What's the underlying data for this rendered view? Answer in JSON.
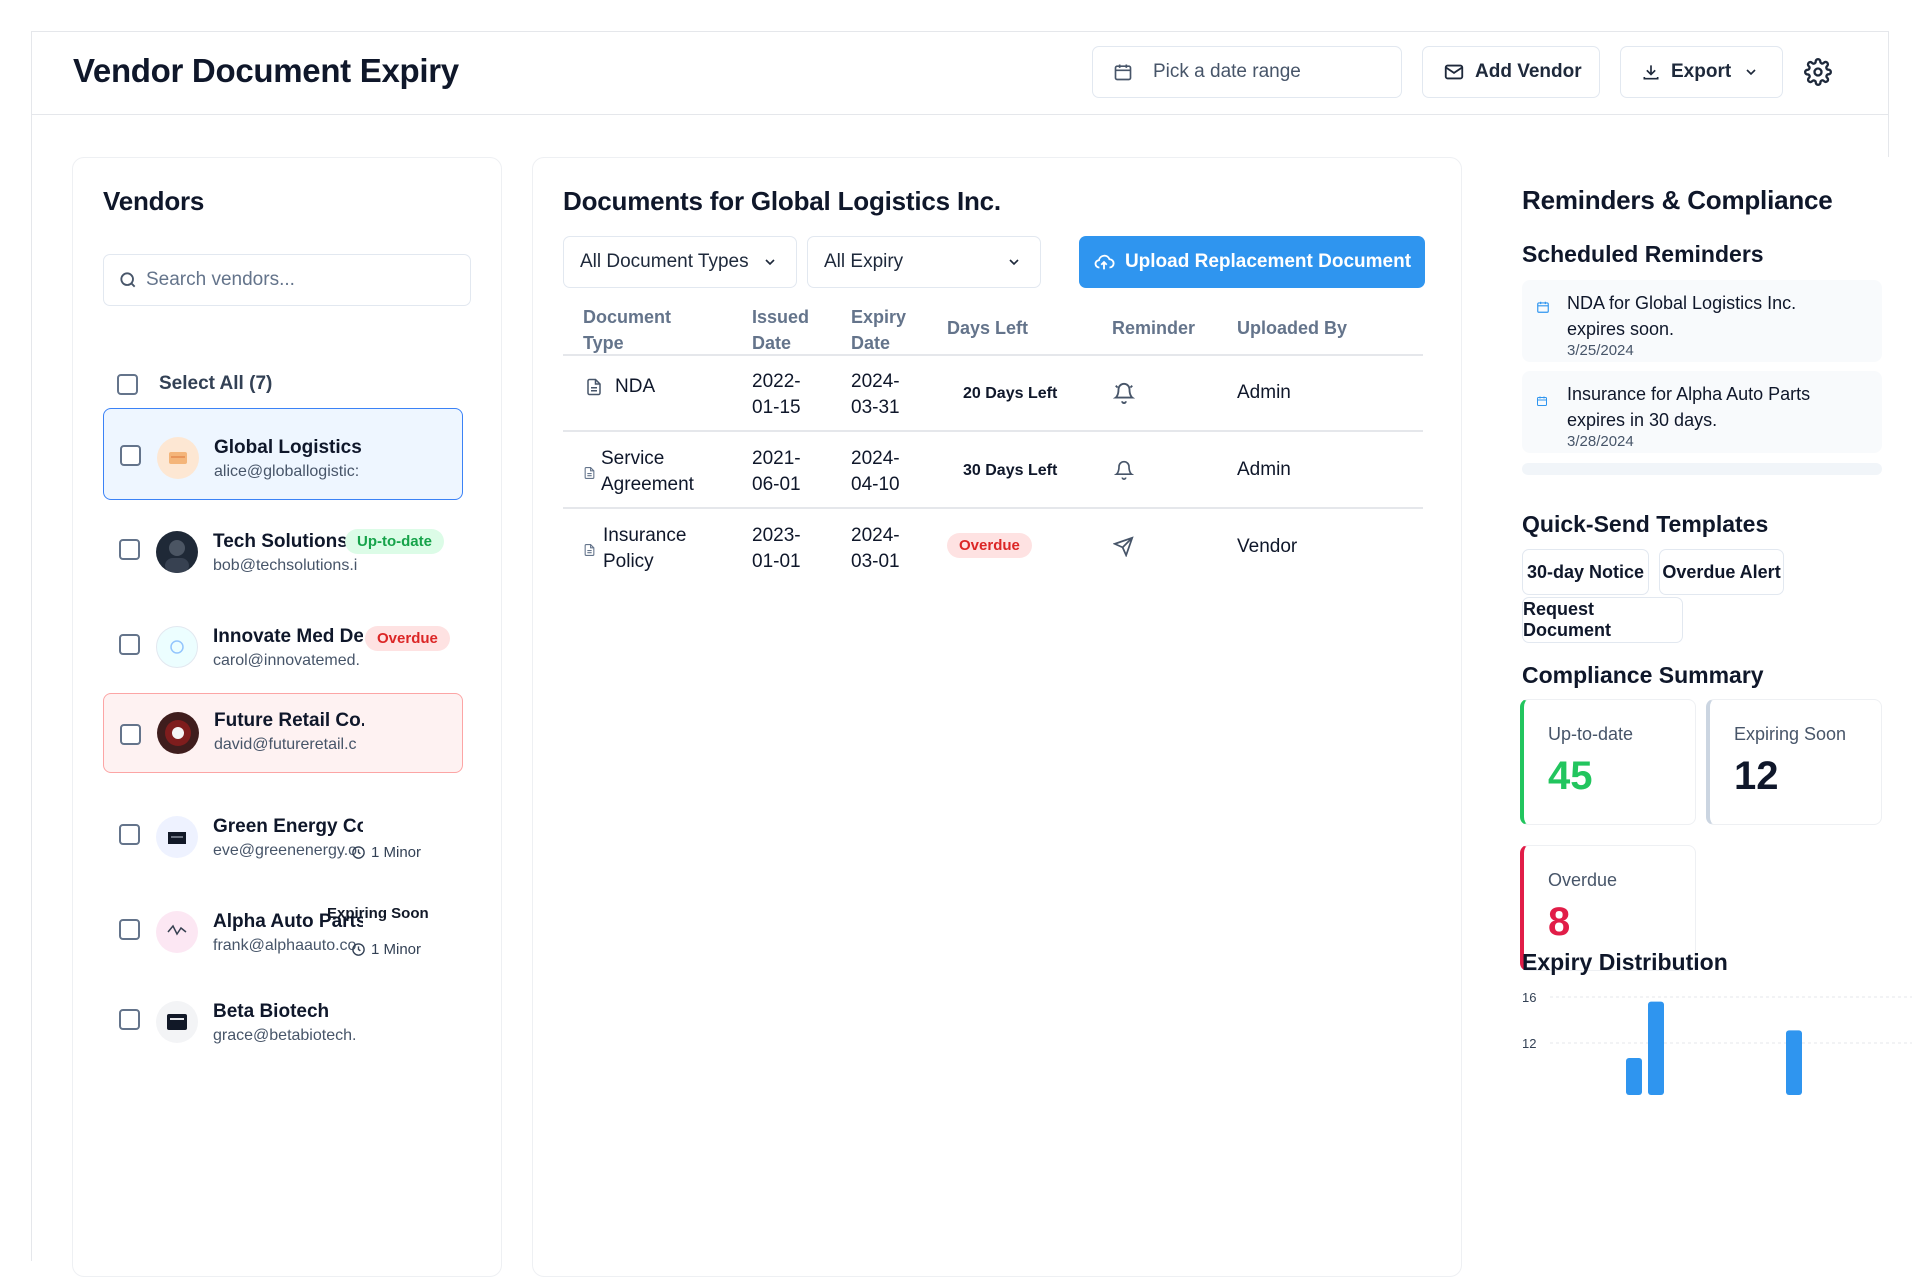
{
  "header": {
    "title": "Vendor Document Expiry",
    "date_placeholder": "Pick a date range",
    "add_vendor": "Add Vendor",
    "export": "Export"
  },
  "vendors_panel": {
    "title": "Vendors",
    "search_placeholder": "Search vendors...",
    "select_all": "Select All (7)",
    "items": [
      {
        "name": "Global Logistics I",
        "email": "alice@globallogistic:"
      },
      {
        "name": "Tech Solutions LL",
        "email": "bob@techsolutions.i",
        "badge": "Up-to-date"
      },
      {
        "name": "Innovate Med De’",
        "email": "carol@innovatemed.",
        "badge": "Overdue"
      },
      {
        "name": "Future Retail Co.",
        "email": "david@futureretail.c"
      },
      {
        "name": "Green Energy Coi",
        "email": "eve@greenenergy.o",
        "minor": "1 Minor"
      },
      {
        "name": "Alpha Auto Parts",
        "email": "frank@alphaauto.co",
        "badge": "Expiring Soon",
        "minor": "1 Minor"
      },
      {
        "name": "Beta Biotech",
        "email": "grace@betabiotech."
      }
    ]
  },
  "documents_panel": {
    "title": "Documents for Global Logistics Inc.",
    "type_filter": "All Document Types",
    "expiry_filter": "All Expiry",
    "upload_button": "Upload Replacement Document",
    "columns": {
      "type_1": "Document",
      "type_2": "Type",
      "issued_1": "Issued",
      "issued_2": "Date",
      "expiry_1": "Expiry",
      "expiry_2": "Date",
      "days": "Days Left",
      "reminder": "Reminder",
      "uploaded": "Uploaded By"
    },
    "rows": [
      {
        "type_1": "NDA",
        "type_2": "",
        "issued_1": "2022-",
        "issued_2": "01-15",
        "expiry_1": "2024-",
        "expiry_2": "03-31",
        "days": "20 Days Left",
        "uploaded": "Admin"
      },
      {
        "type_1": "Service",
        "type_2": "Agreement",
        "issued_1": "2021-",
        "issued_2": "06-01",
        "expiry_1": "2024-",
        "expiry_2": "04-10",
        "days": "30 Days Left",
        "uploaded": "Admin"
      },
      {
        "type_1": "Insurance",
        "type_2": "Policy",
        "issued_1": "2023-",
        "issued_2": "01-01",
        "expiry_1": "2024-",
        "expiry_2": "03-01",
        "days": "Overdue",
        "uploaded": "Vendor"
      }
    ]
  },
  "right_panel": {
    "title": "Reminders & Compliance",
    "scheduled_title": "Scheduled Reminders",
    "reminders": [
      {
        "text_1": "NDA for Global Logistics Inc.",
        "text_2": "expires soon.",
        "date": "3/25/2024"
      },
      {
        "text_1": "Insurance for Alpha Auto Parts",
        "text_2": "expires in 30 days.",
        "date": "3/28/2024"
      }
    ],
    "templates_title": "Quick-Send Templates",
    "templates": [
      "30-day Notice",
      "Overdue Alert",
      "Request Document"
    ],
    "compliance_title": "Compliance Summary",
    "compliance": {
      "up_label": "Up-to-date",
      "up_value": "45",
      "soon_label": "Expiring Soon",
      "soon_value": "12",
      "overdue_label": "Overdue",
      "overdue_value": "8"
    },
    "distribution_title": "Expiry Distribution",
    "colors": {
      "green": "#22c55e",
      "gray": "#cbd5e1",
      "red": "#e11d48",
      "bar": "#2f95ef"
    }
  },
  "chart_data": {
    "type": "bar",
    "title": "Expiry Distribution",
    "y_ticks": [
      16,
      12
    ],
    "visible_bars": [
      {
        "value": 10.7
      },
      {
        "value": 15.6
      },
      {
        "value": 13.1
      }
    ]
  }
}
